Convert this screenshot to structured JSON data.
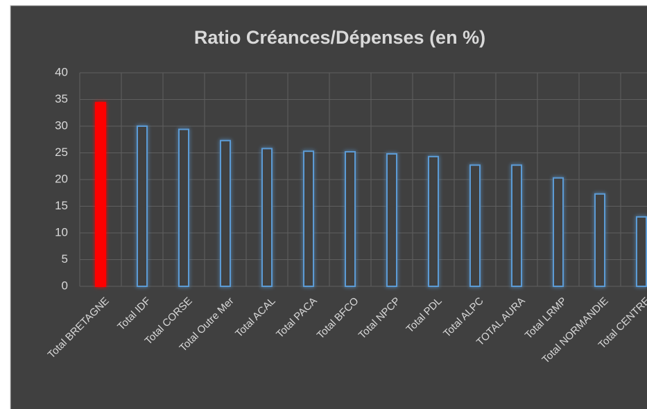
{
  "chart_data": {
    "type": "bar",
    "title": "Ratio Créances/Dépenses (en %)",
    "categories": [
      "Total BRETAGNE",
      "Total IDF",
      "Total CORSE",
      "Total Outre Mer",
      "Total ACAL",
      "Total PACA",
      "Total BFCO",
      "Total NPCP",
      "Total PDL",
      "Total ALPC",
      "TOTAL AURA",
      "Total LRMP",
      "Total NORMANDIE",
      "Total CENTRE"
    ],
    "values": [
      34.4,
      30.0,
      29.4,
      27.3,
      25.8,
      25.3,
      25.2,
      24.8,
      24.3,
      22.7,
      22.7,
      20.3,
      17.3,
      13.0
    ],
    "bar_fills": [
      "#ff0000",
      "#404040",
      "#404040",
      "#404040",
      "#404040",
      "#404040",
      "#404040",
      "#404040",
      "#404040",
      "#404040",
      "#404040",
      "#404040",
      "#404040",
      "#404040"
    ],
    "bar_outlines": [
      "#ff0000",
      "#5b9bd5",
      "#5b9bd5",
      "#5b9bd5",
      "#5b9bd5",
      "#5b9bd5",
      "#5b9bd5",
      "#5b9bd5",
      "#5b9bd5",
      "#5b9bd5",
      "#5b9bd5",
      "#5b9bd5",
      "#5b9bd5",
      "#5b9bd5"
    ],
    "ylim": [
      0,
      40
    ],
    "yticks": [
      0,
      5,
      10,
      15,
      20,
      25,
      30,
      35,
      40
    ],
    "grid": true
  }
}
